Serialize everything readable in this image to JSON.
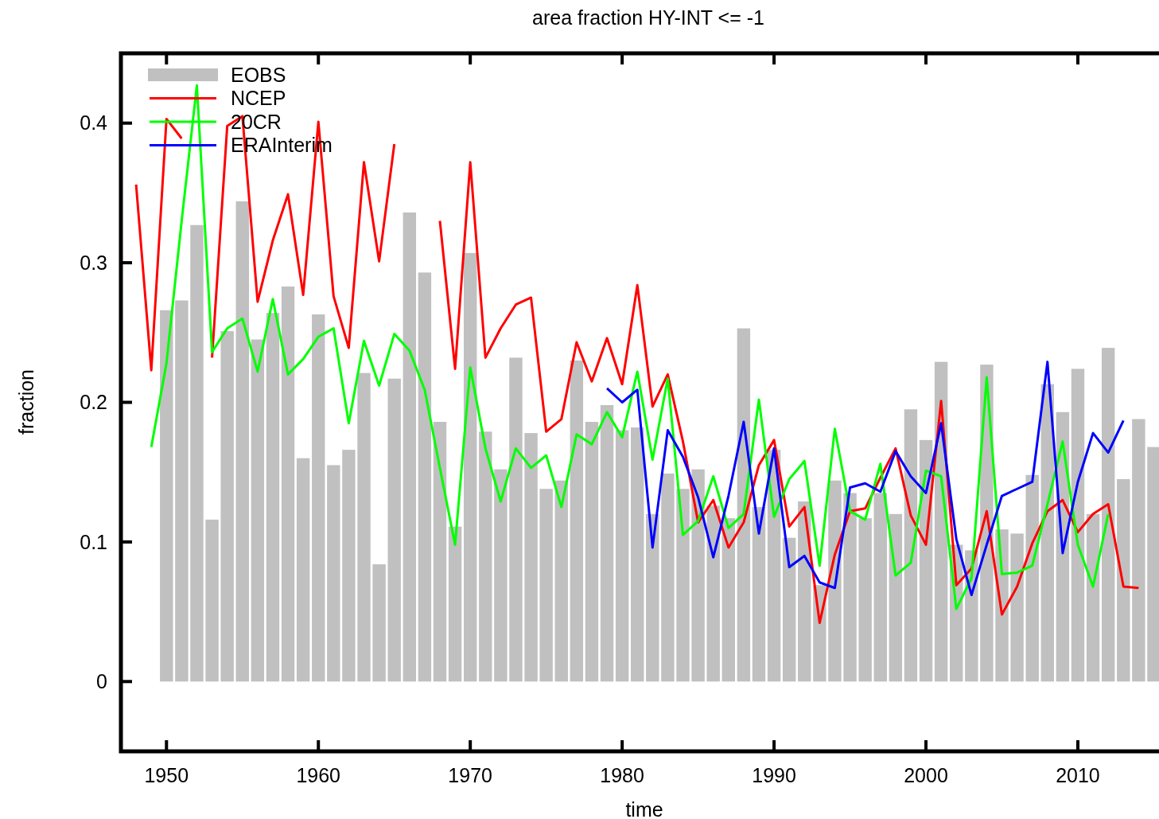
{
  "chart_data": {
    "type": "line",
    "title": "area fraction HY-INT <= -1",
    "xlabel": "time",
    "ylabel": "fraction",
    "xlim": [
      1947,
      2015.5
    ],
    "ylim": [
      -0.05,
      0.45
    ],
    "xticks": [
      1950,
      1960,
      1970,
      1980,
      1990,
      2000,
      2010
    ],
    "yticks": [
      0,
      0.1,
      0.2,
      0.3,
      0.4
    ],
    "grid": false,
    "legend": "top left",
    "series": [
      {
        "name": "EOBS",
        "type": "bar",
        "color": "#c0c0c0",
        "x": [
          1950,
          1951,
          1952,
          1953,
          1954,
          1955,
          1956,
          1957,
          1958,
          1959,
          1960,
          1961,
          1962,
          1963,
          1964,
          1965,
          1966,
          1967,
          1968,
          1969,
          1970,
          1971,
          1972,
          1973,
          1974,
          1975,
          1976,
          1977,
          1978,
          1979,
          1980,
          1981,
          1982,
          1983,
          1984,
          1985,
          1986,
          1987,
          1988,
          1989,
          1990,
          1991,
          1992,
          1993,
          1994,
          1995,
          1996,
          1997,
          1998,
          1999,
          2000,
          2001,
          2002,
          2003,
          2004,
          2005,
          2006,
          2007,
          2008,
          2009,
          2010,
          2011,
          2012,
          2013,
          2014,
          2015
        ],
        "values": [
          0.266,
          0.273,
          0.327,
          0.116,
          0.251,
          0.344,
          0.245,
          0.264,
          0.283,
          0.16,
          0.263,
          0.155,
          0.166,
          0.221,
          0.084,
          0.217,
          0.336,
          0.293,
          0.186,
          0.111,
          0.307,
          0.179,
          0.152,
          0.232,
          0.178,
          0.138,
          0.144,
          0.23,
          0.186,
          0.198,
          0.18,
          0.182,
          0.12,
          0.149,
          0.138,
          0.152,
          0.126,
          0.117,
          0.253,
          0.125,
          0.166,
          0.103,
          0.129,
          0.069,
          0.144,
          0.135,
          0.117,
          0.135,
          0.12,
          0.195,
          0.173,
          0.229,
          0.098,
          0.094,
          0.227,
          0.109,
          0.106,
          0.148,
          0.213,
          0.193,
          0.224,
          0.12,
          0.239,
          0.145,
          0.188,
          0.168
        ]
      },
      {
        "name": "NCEP",
        "color": "#ff0000",
        "x": [
          1948,
          1949,
          1950,
          1951,
          1952,
          1953,
          1954,
          1955,
          1956,
          1957,
          1958,
          1959,
          1960,
          1961,
          1962,
          1963,
          1964,
          1965,
          1966,
          1967,
          1968,
          1969,
          1970,
          1971,
          1972,
          1973,
          1974,
          1975,
          1976,
          1977,
          1978,
          1979,
          1980,
          1981,
          1982,
          1983,
          1984,
          1985,
          1986,
          1987,
          1988,
          1989,
          1990,
          1991,
          1992,
          1993,
          1994,
          1995,
          1996,
          1997,
          1998,
          1999,
          2000,
          2001,
          2002,
          2003,
          2004,
          2005,
          2006,
          2007,
          2008,
          2009,
          2010,
          2011,
          2012,
          2013,
          2014
        ],
        "values": [
          0.356,
          0.223,
          0.403,
          0.389,
          null,
          0.232,
          0.398,
          0.405,
          0.272,
          0.316,
          0.349,
          0.277,
          0.401,
          0.276,
          0.239,
          0.372,
          0.301,
          0.385,
          null,
          null,
          0.33,
          0.224,
          0.372,
          0.232,
          0.253,
          0.27,
          0.275,
          0.179,
          0.188,
          0.243,
          0.215,
          0.246,
          0.213,
          0.284,
          0.197,
          0.22,
          0.172,
          0.114,
          0.13,
          0.096,
          0.114,
          0.155,
          0.173,
          0.111,
          0.125,
          0.042,
          0.091,
          0.122,
          0.124,
          0.146,
          0.167,
          0.119,
          0.098,
          0.201,
          0.069,
          0.081,
          0.122,
          0.048,
          0.068,
          0.099,
          0.122,
          0.13,
          0.107,
          0.12,
          0.127,
          0.068,
          0.067
        ]
      },
      {
        "name": "20CR",
        "color": "#00ff00",
        "x": [
          1949,
          1950,
          1951,
          1952,
          1953,
          1954,
          1955,
          1956,
          1957,
          1958,
          1959,
          1960,
          1961,
          1962,
          1963,
          1964,
          1965,
          1966,
          1967,
          1968,
          1969,
          1970,
          1971,
          1972,
          1973,
          1974,
          1975,
          1976,
          1977,
          1978,
          1979,
          1980,
          1981,
          1982,
          1983,
          1984,
          1985,
          1986,
          1987,
          1988,
          1989,
          1990,
          1991,
          1992,
          1993,
          1994,
          1995,
          1996,
          1997,
          1998,
          1999,
          2000,
          2001,
          2002,
          2003,
          2004,
          2005,
          2006,
          2007,
          2008,
          2009,
          2010,
          2011,
          2012
        ],
        "values": [
          0.168,
          0.228,
          0.33,
          0.427,
          0.236,
          0.253,
          0.26,
          0.222,
          0.274,
          0.22,
          0.231,
          0.247,
          0.253,
          0.185,
          0.244,
          0.212,
          0.249,
          0.237,
          0.209,
          0.153,
          0.098,
          0.225,
          0.167,
          0.129,
          0.167,
          0.153,
          0.162,
          0.125,
          0.177,
          0.17,
          0.193,
          0.175,
          0.222,
          0.159,
          0.217,
          0.105,
          0.115,
          0.147,
          0.11,
          0.12,
          0.202,
          0.118,
          0.145,
          0.158,
          0.083,
          0.181,
          0.122,
          0.116,
          0.156,
          0.076,
          0.085,
          0.151,
          0.147,
          0.052,
          0.074,
          0.218,
          0.077,
          0.078,
          0.083,
          0.127,
          0.172,
          0.098,
          0.068,
          0.12
        ]
      },
      {
        "name": "ERAInterim",
        "color": "#0000ff",
        "x": [
          1979,
          1980,
          1981,
          1982,
          1983,
          1984,
          1985,
          1986,
          1987,
          1988,
          1989,
          1990,
          1991,
          1992,
          1993,
          1994,
          1995,
          1996,
          1997,
          1998,
          1999,
          2000,
          2001,
          2002,
          2003,
          2004,
          2005,
          2006,
          2007,
          2008,
          2009,
          2010,
          2011,
          2012,
          2013
        ],
        "values": [
          0.21,
          0.2,
          0.209,
          0.096,
          0.18,
          0.161,
          0.132,
          0.089,
          0.133,
          0.186,
          0.106,
          0.167,
          0.082,
          0.09,
          0.071,
          0.067,
          0.139,
          0.142,
          0.136,
          0.165,
          0.147,
          0.135,
          0.185,
          0.102,
          0.062,
          0.098,
          0.133,
          0.138,
          0.143,
          0.229,
          0.092,
          0.143,
          0.178,
          0.164,
          0.187
        ]
      }
    ]
  }
}
